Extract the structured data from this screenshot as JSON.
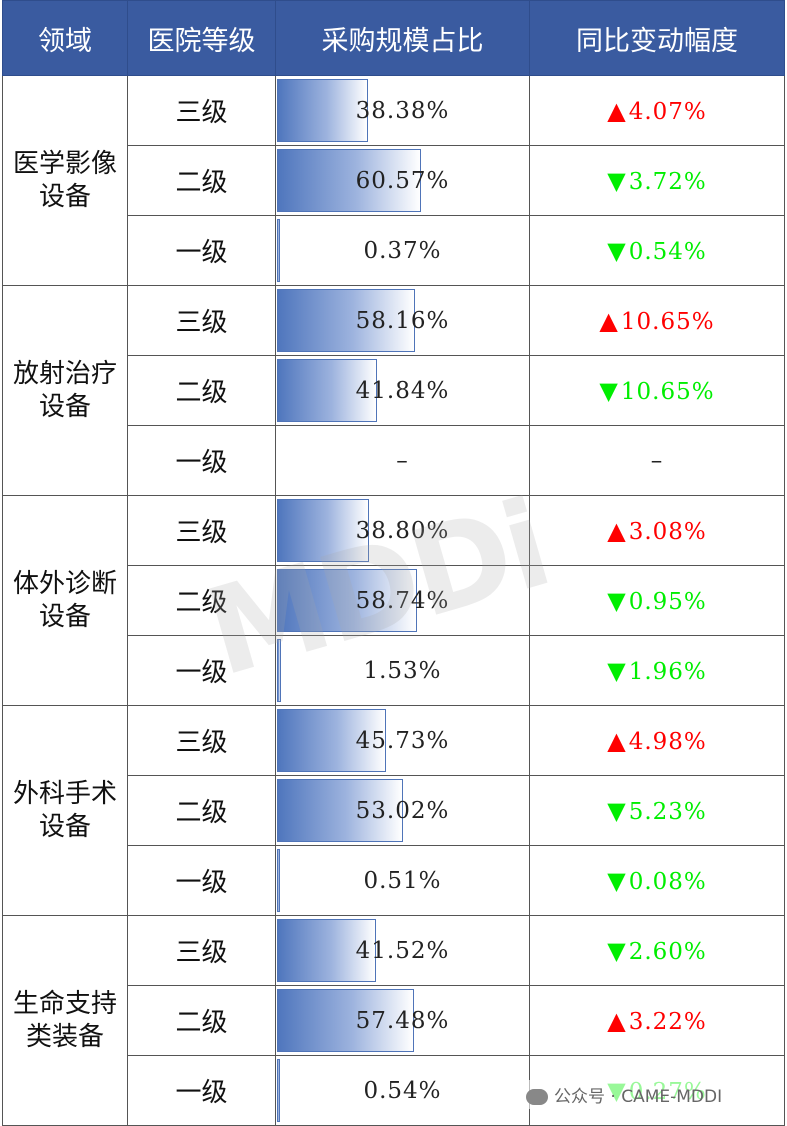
{
  "headers": [
    "领域",
    "医院等级",
    "采购规模占比",
    "同比变动幅度"
  ],
  "colors": {
    "header_bg": "#3a5ba0",
    "up": "#ff0000",
    "down": "#00ee00",
    "bar": "#4f76bd"
  },
  "groups": [
    {
      "domain": "医学影像设备",
      "domain_lines": [
        "医学影像",
        "设备"
      ],
      "rows": [
        {
          "level": "三级",
          "share": "38.38%",
          "share_value": 38.38,
          "dir": "up",
          "change": "4.07%"
        },
        {
          "level": "二级",
          "share": "60.57%",
          "share_value": 60.57,
          "dir": "down",
          "change": "3.72%"
        },
        {
          "level": "一级",
          "share": "0.37%",
          "share_value": 0.37,
          "dir": "down",
          "change": "0.54%"
        }
      ]
    },
    {
      "domain": "放射治疗设备",
      "domain_lines": [
        "放射治疗",
        "设备"
      ],
      "rows": [
        {
          "level": "三级",
          "share": "58.16%",
          "share_value": 58.16,
          "dir": "up",
          "change": "10.65%"
        },
        {
          "level": "二级",
          "share": "41.84%",
          "share_value": 41.84,
          "dir": "down",
          "change": "10.65%"
        },
        {
          "level": "一级",
          "share": "–",
          "share_value": 0,
          "dir": "none",
          "change": "–"
        }
      ]
    },
    {
      "domain": "体外诊断设备",
      "domain_lines": [
        "体外诊断",
        "设备"
      ],
      "rows": [
        {
          "level": "三级",
          "share": "38.80%",
          "share_value": 38.8,
          "dir": "up",
          "change": "3.08%"
        },
        {
          "level": "二级",
          "share": "58.74%",
          "share_value": 58.74,
          "dir": "down",
          "change": "0.95%"
        },
        {
          "level": "一级",
          "share": "1.53%",
          "share_value": 1.53,
          "dir": "down",
          "change": "1.96%"
        }
      ]
    },
    {
      "domain": "外科手术设备",
      "domain_lines": [
        "外科手术",
        "设备"
      ],
      "rows": [
        {
          "level": "三级",
          "share": "45.73%",
          "share_value": 45.73,
          "dir": "up",
          "change": "4.98%"
        },
        {
          "level": "二级",
          "share": "53.02%",
          "share_value": 53.02,
          "dir": "down",
          "change": "5.23%"
        },
        {
          "level": "一级",
          "share": "0.51%",
          "share_value": 0.51,
          "dir": "down",
          "change": "0.08%"
        }
      ]
    },
    {
      "domain": "生命支持类装备",
      "domain_lines": [
        "生命支持",
        "类装备"
      ],
      "rows": [
        {
          "level": "三级",
          "share": "41.52%",
          "share_value": 41.52,
          "dir": "down",
          "change": "2.60%"
        },
        {
          "level": "二级",
          "share": "57.48%",
          "share_value": 57.48,
          "dir": "up",
          "change": "3.22%"
        },
        {
          "level": "一级",
          "share": "0.54%",
          "share_value": 0.54,
          "dir": "down",
          "change": "0.27%"
        }
      ]
    }
  ],
  "watermark": "MDDi",
  "footer": "公众号 · CAME-MDDI"
}
